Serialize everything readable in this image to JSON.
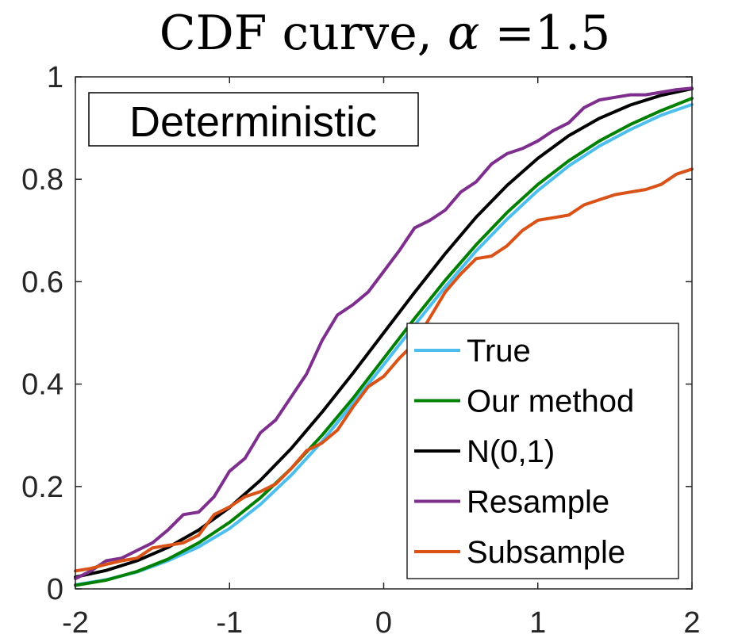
{
  "chart_data": {
    "type": "line",
    "title_prefix": "CDF curve, ",
    "title_symbol": "α",
    "title_suffix": " =1.5",
    "annotation": "Deterministic",
    "xlabel": "",
    "ylabel": "",
    "xlim": [
      -2,
      2
    ],
    "ylim": [
      0,
      1
    ],
    "xticks": [
      -2,
      -1,
      0,
      1,
      2
    ],
    "xtick_labels": [
      "-2",
      "-1",
      "0",
      "1",
      "2"
    ],
    "yticks": [
      0,
      0.2,
      0.4,
      0.6,
      0.8,
      1
    ],
    "ytick_labels": [
      "0",
      "0.2",
      "0.4",
      "0.6",
      "0.8",
      "1"
    ],
    "grid": false,
    "legend_position": "bottom-right",
    "series": [
      {
        "name": "True",
        "color": "#4DBEEE",
        "x": [
          -2,
          -1.8,
          -1.6,
          -1.4,
          -1.2,
          -1.0,
          -0.8,
          -0.6,
          -0.4,
          -0.2,
          0,
          0.2,
          0.4,
          0.6,
          0.8,
          1.0,
          1.2,
          1.4,
          1.6,
          1.8,
          2.0
        ],
        "y": [
          0.008,
          0.018,
          0.033,
          0.055,
          0.082,
          0.118,
          0.165,
          0.222,
          0.288,
          0.362,
          0.438,
          0.515,
          0.59,
          0.66,
          0.722,
          0.778,
          0.826,
          0.865,
          0.897,
          0.925,
          0.946
        ]
      },
      {
        "name": "Our method",
        "color": "#008000",
        "x": [
          -2,
          -1.8,
          -1.6,
          -1.4,
          -1.2,
          -1.0,
          -0.8,
          -0.6,
          -0.4,
          -0.2,
          0,
          0.2,
          0.4,
          0.6,
          0.8,
          1.0,
          1.2,
          1.4,
          1.6,
          1.8,
          2.0
        ],
        "y": [
          0.007,
          0.017,
          0.034,
          0.058,
          0.09,
          0.13,
          0.178,
          0.235,
          0.3,
          0.372,
          0.45,
          0.528,
          0.603,
          0.672,
          0.735,
          0.79,
          0.836,
          0.875,
          0.907,
          0.934,
          0.958
        ]
      },
      {
        "name": "N(0,1)",
        "color": "#000000",
        "x": [
          -2,
          -1.8,
          -1.6,
          -1.4,
          -1.2,
          -1.0,
          -0.8,
          -0.6,
          -0.4,
          -0.2,
          0,
          0.2,
          0.4,
          0.6,
          0.8,
          1.0,
          1.2,
          1.4,
          1.6,
          1.8,
          2.0
        ],
        "y": [
          0.023,
          0.036,
          0.055,
          0.081,
          0.115,
          0.159,
          0.212,
          0.274,
          0.345,
          0.421,
          0.5,
          0.579,
          0.655,
          0.726,
          0.788,
          0.841,
          0.885,
          0.919,
          0.945,
          0.964,
          0.977
        ]
      },
      {
        "name": "Resample",
        "color": "#7E2F8E",
        "x": [
          -2,
          -1.9,
          -1.8,
          -1.7,
          -1.6,
          -1.5,
          -1.4,
          -1.3,
          -1.2,
          -1.1,
          -1.0,
          -0.9,
          -0.8,
          -0.7,
          -0.6,
          -0.5,
          -0.4,
          -0.3,
          -0.2,
          -0.1,
          0,
          0.1,
          0.2,
          0.3,
          0.4,
          0.5,
          0.6,
          0.7,
          0.8,
          0.9,
          1.0,
          1.1,
          1.2,
          1.3,
          1.4,
          1.5,
          1.6,
          1.7,
          1.8,
          1.9,
          2.0
        ],
        "y": [
          0.02,
          0.035,
          0.055,
          0.06,
          0.075,
          0.09,
          0.115,
          0.145,
          0.15,
          0.18,
          0.23,
          0.255,
          0.305,
          0.33,
          0.375,
          0.42,
          0.485,
          0.535,
          0.555,
          0.58,
          0.62,
          0.66,
          0.705,
          0.72,
          0.74,
          0.775,
          0.795,
          0.83,
          0.85,
          0.86,
          0.875,
          0.895,
          0.91,
          0.94,
          0.955,
          0.96,
          0.965,
          0.965,
          0.97,
          0.975,
          0.978
        ]
      },
      {
        "name": "Subsample",
        "color": "#D95319",
        "x": [
          -2,
          -1.9,
          -1.8,
          -1.7,
          -1.6,
          -1.5,
          -1.4,
          -1.3,
          -1.2,
          -1.1,
          -1.0,
          -0.9,
          -0.8,
          -0.7,
          -0.6,
          -0.5,
          -0.4,
          -0.3,
          -0.2,
          -0.1,
          0,
          0.1,
          0.2,
          0.3,
          0.4,
          0.5,
          0.6,
          0.7,
          0.8,
          0.9,
          1.0,
          1.1,
          1.2,
          1.3,
          1.4,
          1.5,
          1.6,
          1.7,
          1.8,
          1.9,
          2.0
        ],
        "y": [
          0.035,
          0.04,
          0.048,
          0.055,
          0.06,
          0.08,
          0.085,
          0.09,
          0.105,
          0.145,
          0.16,
          0.18,
          0.19,
          0.205,
          0.235,
          0.27,
          0.285,
          0.31,
          0.355,
          0.395,
          0.415,
          0.45,
          0.48,
          0.53,
          0.58,
          0.615,
          0.645,
          0.65,
          0.67,
          0.7,
          0.72,
          0.725,
          0.73,
          0.75,
          0.76,
          0.77,
          0.775,
          0.78,
          0.79,
          0.81,
          0.82
        ]
      }
    ]
  }
}
